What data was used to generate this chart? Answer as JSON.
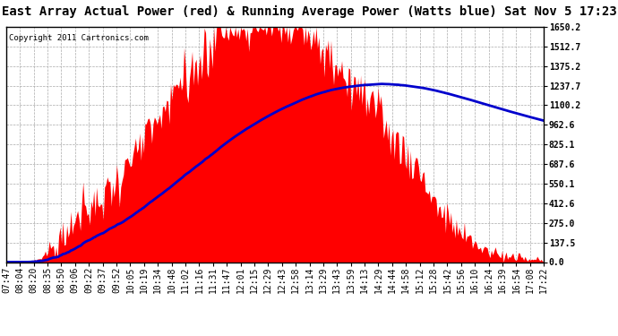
{
  "title": "East Array Actual Power (red) & Running Average Power (Watts blue) Sat Nov 5 17:23",
  "copyright": "Copyright 2011 Cartronics.com",
  "ylabel_right_ticks": [
    0.0,
    137.5,
    275.0,
    412.6,
    550.1,
    687.6,
    825.1,
    962.6,
    1100.2,
    1237.7,
    1375.2,
    1512.7,
    1650.2
  ],
  "ymax": 1650.2,
  "ymin": 0.0,
  "x_labels": [
    "07:47",
    "08:04",
    "08:20",
    "08:35",
    "08:50",
    "09:06",
    "09:22",
    "09:37",
    "09:52",
    "10:05",
    "10:19",
    "10:34",
    "10:48",
    "11:02",
    "11:16",
    "11:31",
    "11:47",
    "12:01",
    "12:15",
    "12:29",
    "12:43",
    "12:58",
    "13:14",
    "13:29",
    "13:43",
    "13:59",
    "14:13",
    "14:29",
    "14:44",
    "14:58",
    "15:12",
    "15:28",
    "15:42",
    "15:56",
    "16:10",
    "16:24",
    "16:39",
    "16:54",
    "17:08",
    "17:22"
  ],
  "background_color": "#ffffff",
  "plot_bg_color": "#ffffff",
  "grid_color": "#aaaaaa",
  "bar_color": "#ff0000",
  "avg_color": "#0000cc",
  "title_fontsize": 10,
  "tick_fontsize": 7,
  "copyright_fontsize": 6.5
}
